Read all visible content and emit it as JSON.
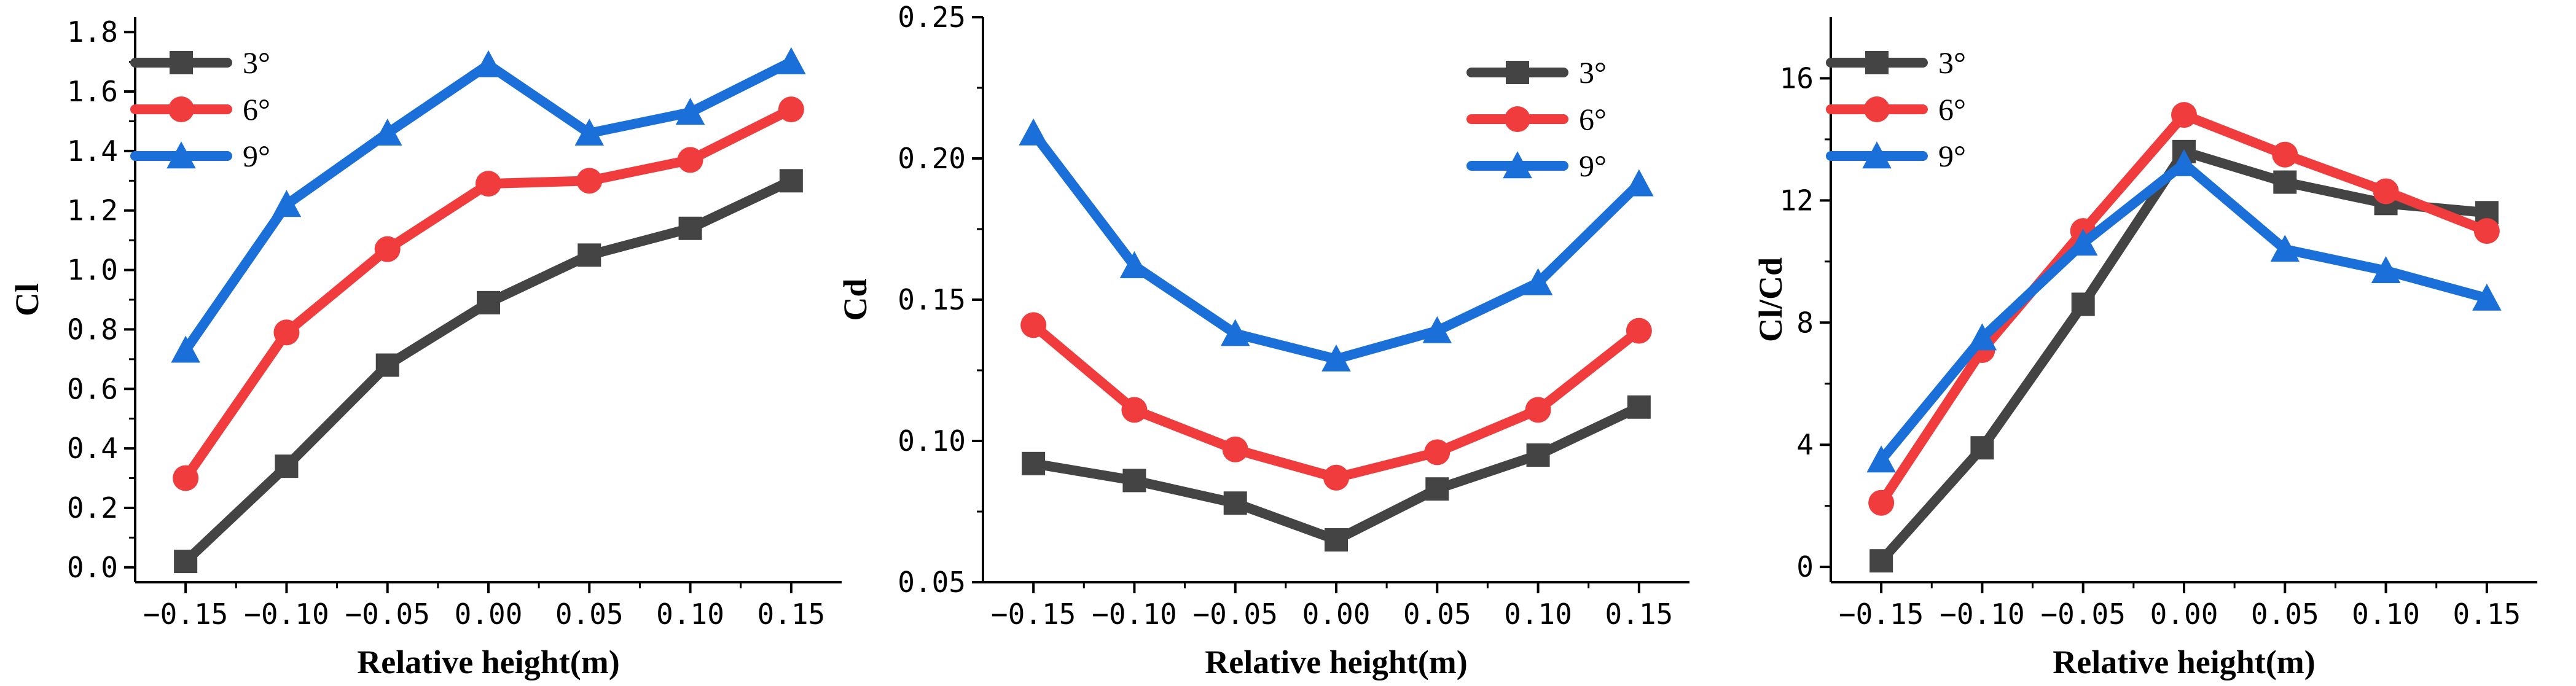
{
  "chart_data": [
    {
      "type": "line",
      "title": "",
      "xlabel": "Relative height(m)",
      "ylabel": "Cl",
      "x": [
        -0.15,
        -0.1,
        -0.05,
        0.0,
        0.05,
        0.1,
        0.15
      ],
      "xticks": [
        -0.15,
        -0.1,
        -0.05,
        0.0,
        0.05,
        0.1,
        0.15
      ],
      "xtick_labels": [
        "−0.15",
        "−0.10",
        "−0.05",
        "0.00",
        "0.05",
        "0.10",
        "0.15"
      ],
      "xlim": [
        -0.175,
        0.175
      ],
      "ylim": [
        -0.05,
        1.85
      ],
      "yticks": [
        0.0,
        0.2,
        0.4,
        0.6,
        0.8,
        1.0,
        1.2,
        1.4,
        1.6,
        1.8
      ],
      "ytick_labels": [
        "0.0",
        "0.2",
        "0.4",
        "0.6",
        "0.8",
        "1.0",
        "1.2",
        "1.4",
        "1.6",
        "1.8"
      ],
      "legend_position": "top-left",
      "grid": false,
      "series": [
        {
          "name": "3°",
          "color": "#444444",
          "marker": "square",
          "values": [
            0.02,
            0.34,
            0.68,
            0.89,
            1.05,
            1.14,
            1.3
          ]
        },
        {
          "name": "6°",
          "color": "#f03c3c",
          "marker": "circle",
          "values": [
            0.3,
            0.79,
            1.07,
            1.29,
            1.3,
            1.37,
            1.54
          ]
        },
        {
          "name": "9°",
          "color": "#1a6fd8",
          "marker": "triangle",
          "values": [
            0.73,
            1.22,
            1.46,
            1.69,
            1.46,
            1.53,
            1.7
          ]
        }
      ]
    },
    {
      "type": "line",
      "title": "",
      "xlabel": "Relative height(m)",
      "ylabel": "Cd",
      "x": [
        -0.15,
        -0.1,
        -0.05,
        0.0,
        0.05,
        0.1,
        0.15
      ],
      "xticks": [
        -0.15,
        -0.1,
        -0.05,
        0.0,
        0.05,
        0.1,
        0.15
      ],
      "xtick_labels": [
        "−0.15",
        "−0.10",
        "−0.05",
        "0.00",
        "0.05",
        "0.10",
        "0.15"
      ],
      "xlim": [
        -0.175,
        0.175
      ],
      "ylim": [
        0.05,
        0.25
      ],
      "yticks": [
        0.05,
        0.1,
        0.15,
        0.2,
        0.25
      ],
      "ytick_labels": [
        "0.05",
        "0.10",
        "0.15",
        "0.20",
        "0.25"
      ],
      "legend_position": "top-right",
      "grid": false,
      "series": [
        {
          "name": "3°",
          "color": "#444444",
          "marker": "square",
          "values": [
            0.092,
            0.086,
            0.078,
            0.065,
            0.083,
            0.095,
            0.112
          ]
        },
        {
          "name": "6°",
          "color": "#f03c3c",
          "marker": "circle",
          "values": [
            0.141,
            0.111,
            0.097,
            0.087,
            0.096,
            0.111,
            0.139
          ]
        },
        {
          "name": "9°",
          "color": "#1a6fd8",
          "marker": "triangle",
          "values": [
            0.209,
            0.162,
            0.138,
            0.129,
            0.139,
            0.156,
            0.191
          ]
        }
      ]
    },
    {
      "type": "line",
      "title": "",
      "xlabel": "Relative height(m)",
      "ylabel": "Cl/Cd",
      "x": [
        -0.15,
        -0.1,
        -0.05,
        0.0,
        0.05,
        0.1,
        0.15
      ],
      "xticks": [
        -0.15,
        -0.1,
        -0.05,
        0.0,
        0.05,
        0.1,
        0.15
      ],
      "xtick_labels": [
        "−0.15",
        "−0.10",
        "−0.05",
        "0.00",
        "0.05",
        "0.10",
        "0.15"
      ],
      "xlim": [
        -0.175,
        0.175
      ],
      "ylim": [
        -0.5,
        18
      ],
      "yticks": [
        0,
        4,
        8,
        12,
        16
      ],
      "ytick_labels": [
        "0",
        "4",
        "8",
        "12",
        "16"
      ],
      "legend_position": "top-left",
      "grid": false,
      "series": [
        {
          "name": "3°",
          "color": "#444444",
          "marker": "square",
          "values": [
            0.2,
            3.9,
            8.6,
            13.6,
            12.6,
            11.9,
            11.6
          ]
        },
        {
          "name": "6°",
          "color": "#f03c3c",
          "marker": "circle",
          "values": [
            2.1,
            7.1,
            11.0,
            14.8,
            13.5,
            12.3,
            11.0
          ]
        },
        {
          "name": "9°",
          "color": "#1a6fd8",
          "marker": "triangle",
          "values": [
            3.5,
            7.5,
            10.6,
            13.2,
            10.4,
            9.7,
            8.8
          ]
        }
      ]
    }
  ]
}
